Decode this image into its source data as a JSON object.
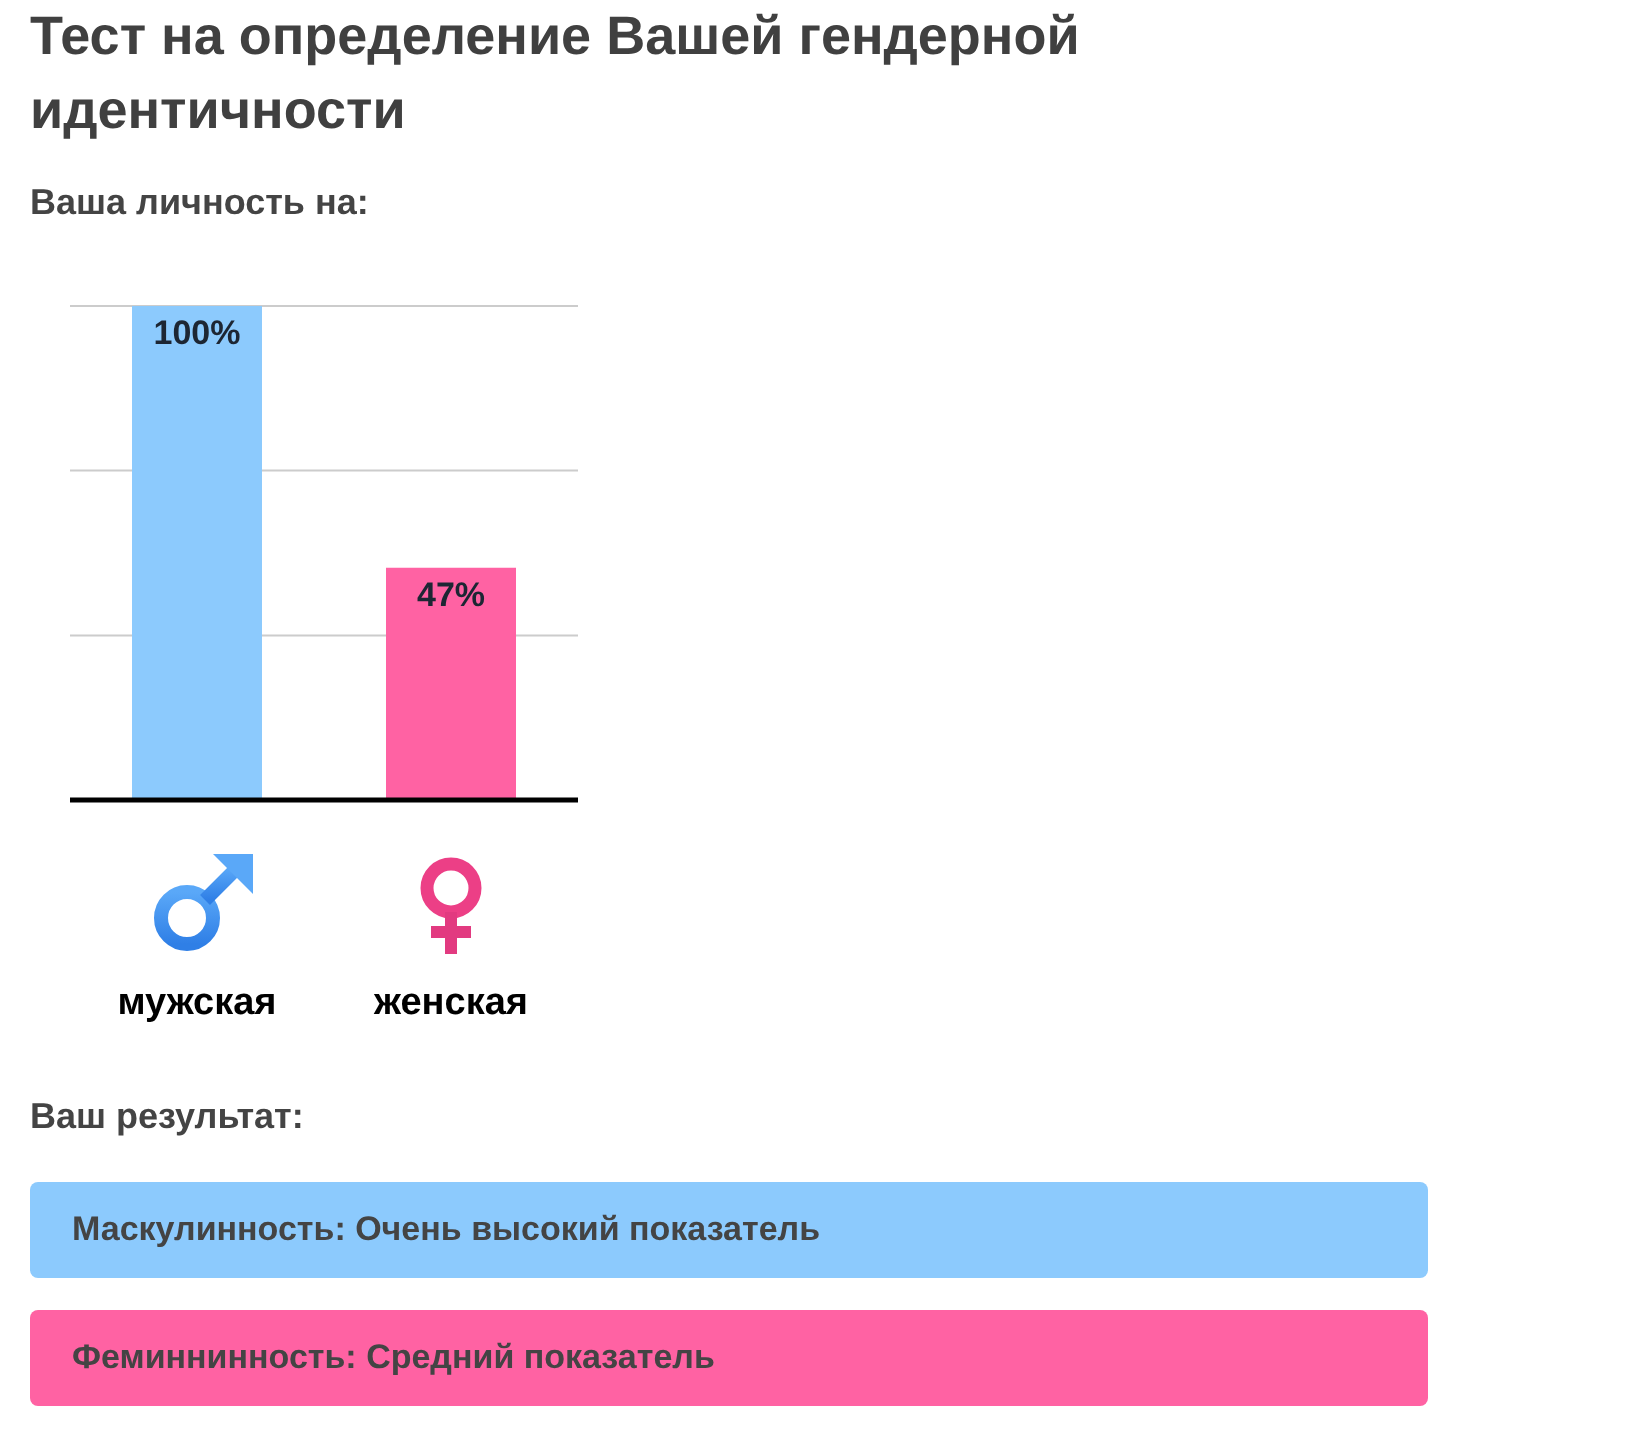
{
  "chart_data": {
    "type": "bar",
    "title": "Тест на определение Вашей гендерной идентичности",
    "subtitle": "Ваша личность на:",
    "categories": [
      "мужская",
      "женская"
    ],
    "values": [
      100,
      47
    ],
    "colors": [
      "#8ccafd",
      "#ff62a3"
    ],
    "value_labels": [
      "100%",
      "47%"
    ],
    "ylim": [
      0,
      100
    ],
    "yticks": [
      {
        "value": 0,
        "label": null
      },
      {
        "value": 33.3,
        "label": null
      },
      {
        "value": 66.7,
        "label": null
      },
      {
        "value": 100,
        "label": null
      }
    ],
    "grid": "y",
    "tick_labels": "x",
    "annotations": [
      "Ваш результат:",
      "Маскулинность: Очень высокий показатель",
      "Феминнинность: Средний показатель"
    ]
  }
}
